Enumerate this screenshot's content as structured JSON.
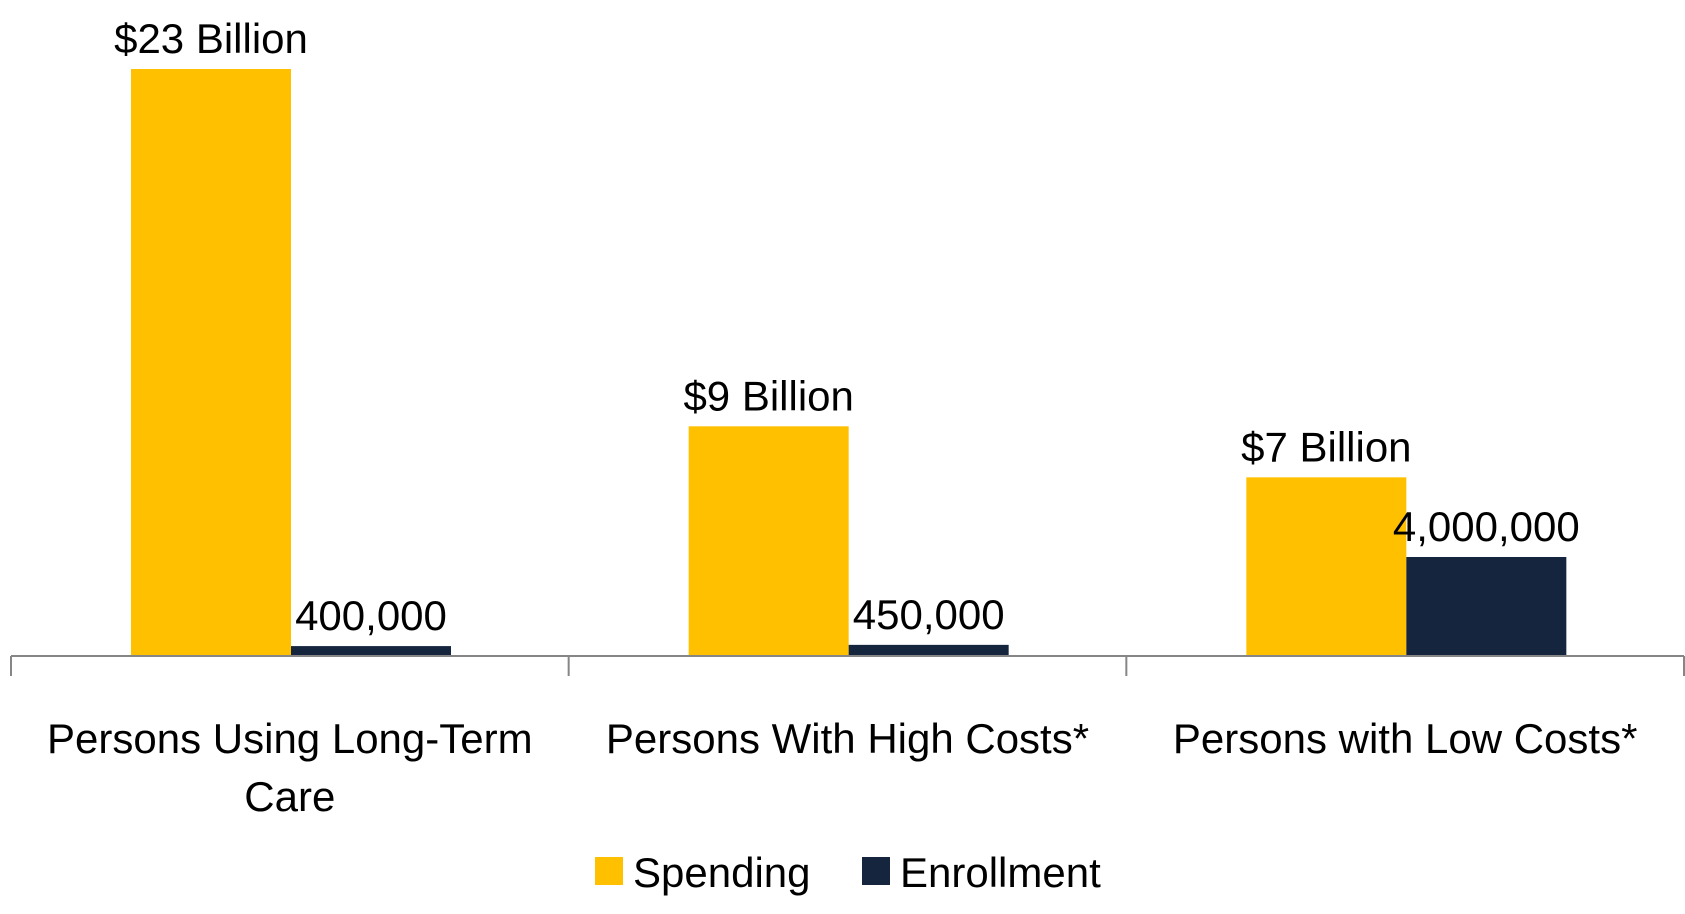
{
  "chart_data": {
    "type": "bar",
    "categories": [
      [
        "Persons Using Long-Term",
        "Care"
      ],
      [
        "Persons With High Costs*"
      ],
      [
        "Persons with Low Costs*"
      ]
    ],
    "series": [
      {
        "name": "Spending",
        "color": "#FFC000",
        "values": [
          23,
          9,
          7
        ],
        "unit": "billion dollars",
        "data_labels": [
          "$23 Billion",
          "$9 Billion",
          "$7 Billion"
        ]
      },
      {
        "name": "Enrollment",
        "color": "#14253D",
        "values": [
          400000,
          450000,
          4000000
        ],
        "unit": "persons",
        "data_labels": [
          "400,000",
          "450,000",
          "4,000,000"
        ]
      }
    ],
    "legend": {
      "position": "bottom"
    },
    "grid": false
  }
}
